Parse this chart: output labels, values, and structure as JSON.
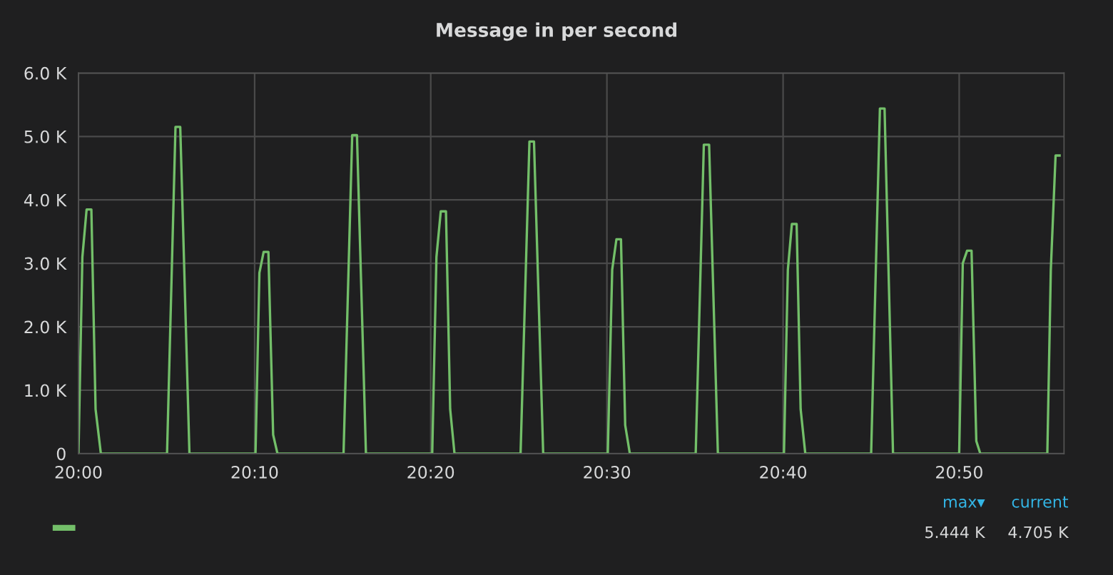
{
  "chart_data": {
    "type": "line",
    "title": "Message in per second",
    "series": [
      {
        "color": "#73bf69",
        "x": [
          20.0,
          20.0037,
          20.0077,
          20.0122,
          20.0162,
          20.0212,
          20.0838,
          20.0918,
          20.0963,
          20.105,
          20.1675,
          20.1712,
          20.1752,
          20.1797,
          20.1842,
          20.1883,
          20.2508,
          20.259,
          20.2635,
          20.272,
          20.3347,
          20.3387,
          20.3428,
          20.3477,
          20.3517,
          20.3558,
          20.4183,
          20.4267,
          20.431,
          20.4397,
          20.5008,
          20.505,
          20.509,
          20.5133,
          20.5173,
          20.5217,
          20.584,
          20.5917,
          20.5967,
          20.605,
          20.6675,
          20.6712,
          20.675,
          20.6795,
          20.6833,
          20.6877,
          20.75,
          20.7583,
          20.7627,
          20.7707,
          20.8333,
          20.8367,
          20.8408,
          20.845,
          20.8495,
          20.8533,
          20.9167,
          20.92,
          20.9245,
          20.9283
        ],
        "values": [
          0,
          3.1,
          3.85,
          3.85,
          0.7,
          0,
          0,
          5.15,
          5.15,
          0,
          0,
          2.85,
          3.18,
          3.18,
          0.3,
          0,
          0,
          5.02,
          5.02,
          0,
          0,
          3.1,
          3.82,
          3.82,
          0.7,
          0,
          0,
          4.92,
          4.92,
          0,
          0,
          2.9,
          3.38,
          3.38,
          0.45,
          0,
          0,
          4.87,
          4.87,
          0,
          0,
          2.9,
          3.62,
          3.62,
          0.7,
          0,
          0,
          5.44,
          5.44,
          0,
          0,
          3.0,
          3.2,
          3.2,
          0.2,
          0,
          0,
          2.9,
          4.7,
          4.7
        ]
      }
    ],
    "xlim": [
      20.0,
      20.9325
    ],
    "xticks": [
      {
        "value": 20.0,
        "label": "20:00"
      },
      {
        "value": 20.1667,
        "label": "20:10"
      },
      {
        "value": 20.3333,
        "label": "20:20"
      },
      {
        "value": 20.5,
        "label": "20:30"
      },
      {
        "value": 20.6667,
        "label": "20:40"
      },
      {
        "value": 20.8333,
        "label": "20:50"
      }
    ],
    "ylim": [
      0,
      6
    ],
    "yticks": [
      0,
      {
        "value": 1,
        "label": "1.0 K"
      },
      {
        "value": 2,
        "label": "2.0 K"
      },
      {
        "value": 3,
        "label": "3.0 K"
      },
      {
        "value": 4,
        "label": "4.0 K"
      },
      {
        "value": 5,
        "label": "5.0 K"
      },
      {
        "value": 6,
        "label": "6.0 K"
      }
    ],
    "grid": true,
    "marker": "none",
    "line_style": "solid",
    "annotations": [
      "max▾",
      "current",
      "5.444 K",
      "4.705 K"
    ]
  }
}
